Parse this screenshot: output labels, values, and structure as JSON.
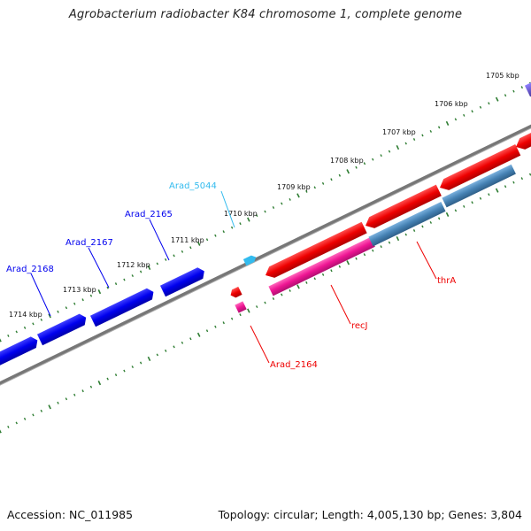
{
  "title": "Agrobacterium radiobacter K84 chromosome 1, complete genome",
  "footer": {
    "accession": "Accession: NC_011985",
    "summary": "Topology: circular; Length: 4,005,130 bp; Genes: 3,804"
  },
  "colors": {
    "backbone": "#808080",
    "tick": "#2e7d32",
    "forward_gene": "#0000ee",
    "reverse_gene": "#ee0000",
    "rna_gene": "#ee1493",
    "gene_steel": "#4682b4",
    "highlight": "#33bbee",
    "purple": "#6a5acd"
  },
  "scale_labels": [
    "1705 kbp",
    "1706 kbp",
    "1707 kbp",
    "1708 kbp",
    "1709 kbp",
    "1710 kbp",
    "1711 kbp",
    "1712 kbp",
    "1713 kbp",
    "1714 kbp"
  ],
  "gene_labels": {
    "arad_5044": "Arad_5044",
    "arad_2165": "Arad_2165",
    "arad_2167": "Arad_2167",
    "arad_2168": "Arad_2168",
    "arad_2164": "Arad_2164",
    "recj": "recJ",
    "thra": "thrA"
  }
}
